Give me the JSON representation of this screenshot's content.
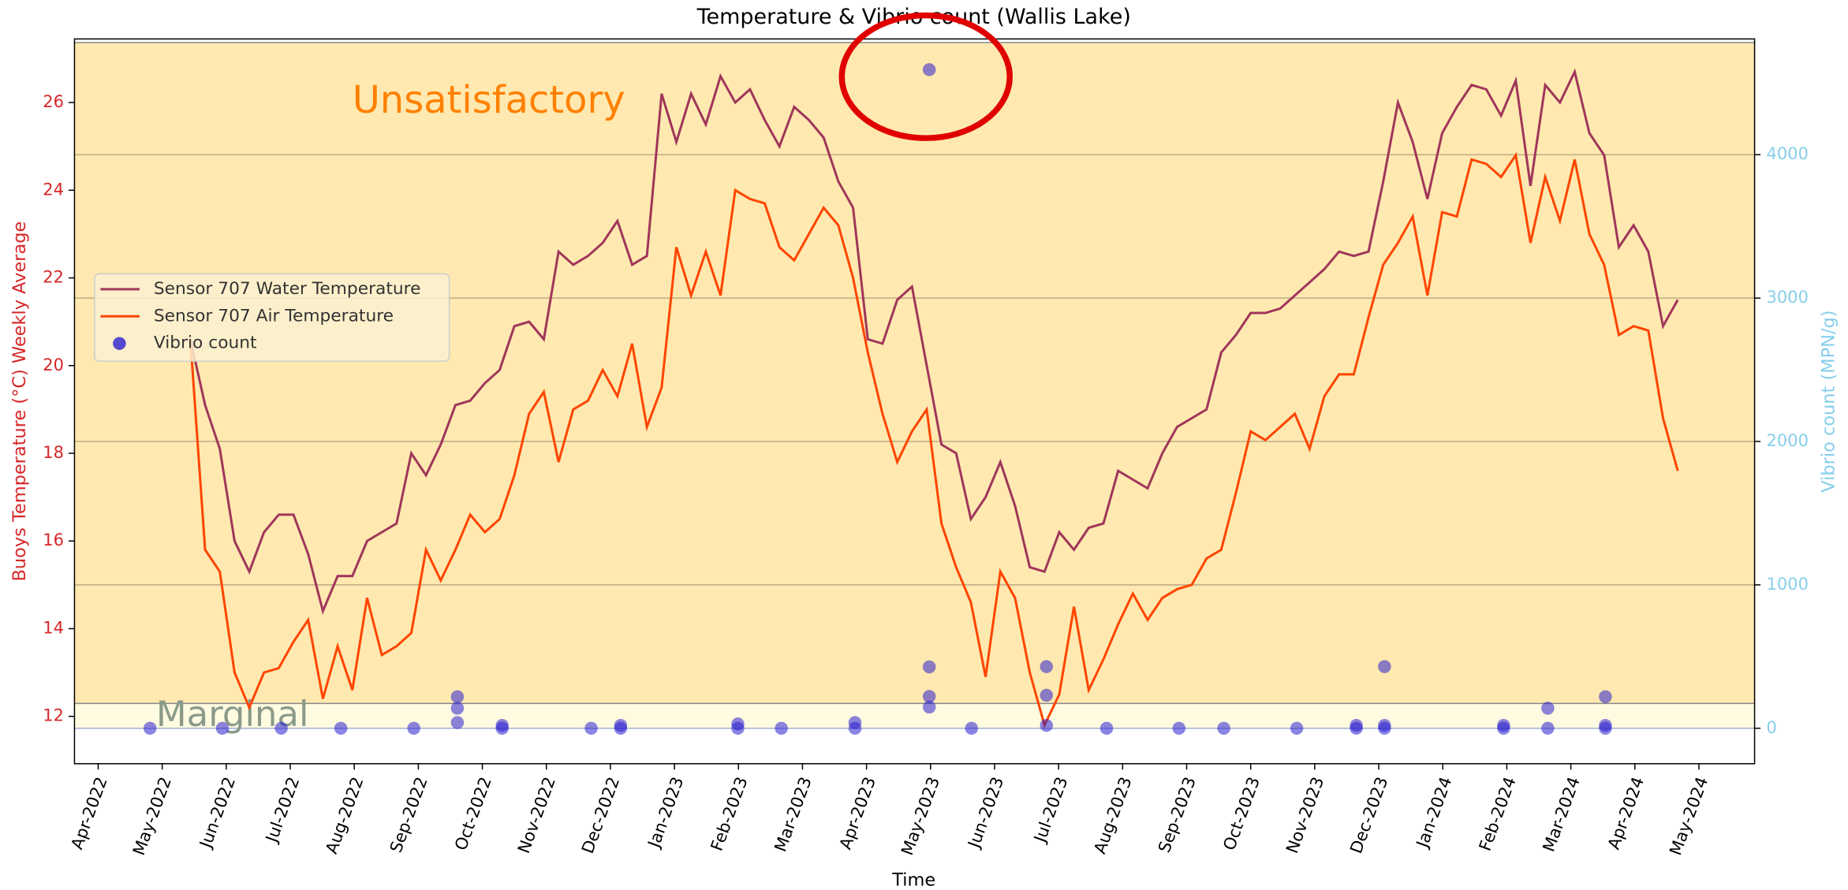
{
  "chart_data": {
    "type": "line",
    "title": "Temperature & Vibrio count (Wallis Lake)",
    "xlabel": "Time",
    "ylabel": "Buoys Temperature (°C) Weekly Average",
    "y2label": "Vibrio count (MPN/g)",
    "xlim": [
      -0.37,
      25.87
    ],
    "xticks": [
      {
        "value": 0,
        "label": "Apr-2022"
      },
      {
        "value": 1,
        "label": "May-2022"
      },
      {
        "value": 2,
        "label": "Jun-2022"
      },
      {
        "value": 3,
        "label": "Jul-2022"
      },
      {
        "value": 4,
        "label": "Aug-2022"
      },
      {
        "value": 5,
        "label": "Sep-2022"
      },
      {
        "value": 6,
        "label": "Oct-2022"
      },
      {
        "value": 7,
        "label": "Nov-2022"
      },
      {
        "value": 8,
        "label": "Dec-2022"
      },
      {
        "value": 9,
        "label": "Jan-2023"
      },
      {
        "value": 10,
        "label": "Feb-2023"
      },
      {
        "value": 11,
        "label": "Mar-2023"
      },
      {
        "value": 12,
        "label": "Apr-2023"
      },
      {
        "value": 13,
        "label": "May-2023"
      },
      {
        "value": 14,
        "label": "Jun-2023"
      },
      {
        "value": 15,
        "label": "Jul-2023"
      },
      {
        "value": 16,
        "label": "Aug-2023"
      },
      {
        "value": 17,
        "label": "Sep-2023"
      },
      {
        "value": 18,
        "label": "Oct-2023"
      },
      {
        "value": 19,
        "label": "Nov-2023"
      },
      {
        "value": 20,
        "label": "Dec-2023"
      },
      {
        "value": 21,
        "label": "Jan-2024"
      },
      {
        "value": 22,
        "label": "Feb-2024"
      },
      {
        "value": 23,
        "label": "Mar-2024"
      },
      {
        "value": 24,
        "label": "Apr-2024"
      },
      {
        "value": 25,
        "label": "May-2024"
      }
    ],
    "ylim": [
      10.92,
      27.45
    ],
    "yticks": [
      12,
      14,
      16,
      18,
      20,
      22,
      24,
      26
    ],
    "y2lim": [
      -247,
      4807
    ],
    "y2ticks": [
      0,
      1000,
      2000,
      3000,
      4000
    ],
    "grid": true,
    "legend": "center left",
    "bands": [
      {
        "label": "Unsatisfactory",
        "from": 173,
        "to": 4782,
        "color": "#ffe9b0"
      },
      {
        "label": "Marginal",
        "from": 0,
        "to": 173,
        "color": "#fffbe1"
      }
    ],
    "x": [
      1.44,
      1.67,
      1.9,
      2.13,
      2.36,
      2.59,
      2.82,
      3.05,
      3.28,
      3.51,
      3.74,
      3.97,
      4.2,
      4.43,
      4.66,
      4.89,
      5.12,
      5.35,
      5.58,
      5.81,
      6.04,
      6.27,
      6.5,
      6.73,
      6.96,
      7.19,
      7.42,
      7.65,
      7.88,
      8.11,
      8.34,
      8.57,
      8.8,
      9.03,
      9.26,
      9.49,
      9.72,
      9.95,
      10.18,
      10.41,
      10.64,
      10.87,
      11.1,
      11.33,
      11.56,
      11.79,
      12.02,
      12.25,
      12.48,
      12.71,
      12.94,
      13.17,
      13.4,
      13.63,
      13.86,
      14.09,
      14.32,
      14.55,
      14.78,
      15.01,
      15.24,
      15.47,
      15.7,
      15.93,
      16.16,
      16.39,
      16.62,
      16.85,
      17.08,
      17.31,
      17.54,
      17.77,
      18,
      18.23,
      18.46,
      18.69,
      18.92,
      19.15,
      19.38,
      19.61,
      19.84,
      20.07,
      20.3,
      20.53,
      20.76,
      20.99,
      21.22,
      21.45,
      21.68,
      21.91,
      22.14,
      22.37,
      22.6,
      22.83,
      23.06,
      23.29,
      23.52,
      23.75,
      23.98,
      24.21,
      24.44,
      24.67
    ],
    "series": [
      {
        "name": "Sensor 707 Water Temperature",
        "color": "#a0365a",
        "values": [
          20.6,
          19.1,
          18.1,
          16.0,
          15.3,
          16.2,
          16.6,
          16.6,
          15.7,
          14.4,
          15.2,
          15.2,
          16.0,
          16.2,
          16.4,
          18.0,
          17.5,
          18.2,
          19.1,
          19.2,
          19.6,
          19.9,
          20.9,
          21.0,
          20.6,
          22.6,
          22.3,
          22.5,
          22.8,
          23.3,
          22.3,
          22.5,
          26.2,
          25.1,
          26.2,
          25.5,
          26.6,
          26.0,
          26.3,
          25.6,
          25.0,
          25.9,
          25.6,
          25.2,
          24.2,
          23.6,
          20.6,
          20.5,
          21.5,
          21.8,
          20.0,
          18.2,
          18.0,
          16.5,
          17.0,
          17.8,
          16.8,
          15.4,
          15.3,
          16.2,
          15.8,
          16.3,
          16.4,
          17.6,
          17.4,
          17.2,
          18.0,
          18.6,
          18.8,
          19.0,
          20.3,
          20.7,
          21.2,
          21.2,
          21.3,
          21.6,
          21.9,
          22.2,
          22.6,
          22.5,
          22.6,
          24.2,
          26.0,
          25.1,
          23.8,
          25.3,
          25.9,
          26.4,
          26.3,
          25.7,
          26.5,
          24.1,
          26.4,
          26.0,
          26.7,
          25.3,
          24.8,
          22.7,
          23.2,
          22.6,
          20.9,
          21.5
        ]
      },
      {
        "name": "Sensor 707 Air Temperature",
        "color": "#ff4500",
        "values": [
          20.6,
          15.8,
          15.3,
          13.0,
          12.2,
          13.0,
          13.1,
          13.7,
          14.2,
          12.4,
          13.6,
          12.6,
          14.7,
          13.4,
          13.6,
          13.9,
          15.8,
          15.1,
          15.8,
          16.6,
          16.2,
          16.5,
          17.5,
          18.9,
          19.4,
          17.8,
          19.0,
          19.2,
          19.9,
          19.3,
          20.5,
          18.6,
          19.5,
          22.7,
          21.6,
          22.6,
          21.6,
          24.0,
          23.8,
          23.7,
          22.7,
          22.4,
          23.0,
          23.6,
          23.2,
          22.0,
          20.3,
          18.9,
          17.8,
          18.5,
          19.0,
          16.4,
          15.4,
          14.6,
          12.9,
          15.3,
          14.7,
          13.0,
          11.8,
          12.5,
          14.5,
          12.6,
          13.3,
          14.1,
          14.8,
          14.2,
          14.7,
          14.9,
          15.0,
          15.6,
          15.8,
          17.1,
          18.5,
          18.3,
          18.6,
          18.9,
          18.1,
          19.3,
          19.8,
          19.8,
          21.1,
          22.3,
          22.8,
          23.4,
          21.6,
          23.5,
          23.4,
          24.7,
          24.6,
          24.3,
          24.8,
          22.8,
          24.3,
          23.3,
          24.7,
          23.0,
          22.3,
          20.7,
          20.9,
          20.8,
          18.8,
          17.6
        ]
      },
      {
        "name": "Vibrio count",
        "type": "scatter",
        "axis": "y2",
        "color": "#2a1fd0",
        "x": [
          0.81,
          1.94,
          2.86,
          3.79,
          4.93,
          5.61,
          5.61,
          5.61,
          6.31,
          6.31,
          7.7,
          8.16,
          8.16,
          9.99,
          9.99,
          10.67,
          11.82,
          11.82,
          12.98,
          12.98,
          12.98,
          12.98,
          13.64,
          14.81,
          14.81,
          14.81,
          15.75,
          16.88,
          17.58,
          18.72,
          19.65,
          19.65,
          20.09,
          20.09,
          20.09,
          21.95,
          21.95,
          22.64,
          22.64,
          23.54,
          23.54,
          23.54
        ],
        "values": [
          0,
          0,
          0,
          0,
          0,
          40,
          140,
          220,
          0,
          20,
          0,
          0,
          20,
          0,
          30,
          0,
          0,
          40,
          4593,
          428,
          222,
          148,
          0,
          20,
          230,
          430,
          0,
          0,
          0,
          0,
          0,
          20,
          0,
          20,
          430,
          0,
          20,
          0,
          140,
          0,
          20,
          220
        ]
      }
    ]
  }
}
